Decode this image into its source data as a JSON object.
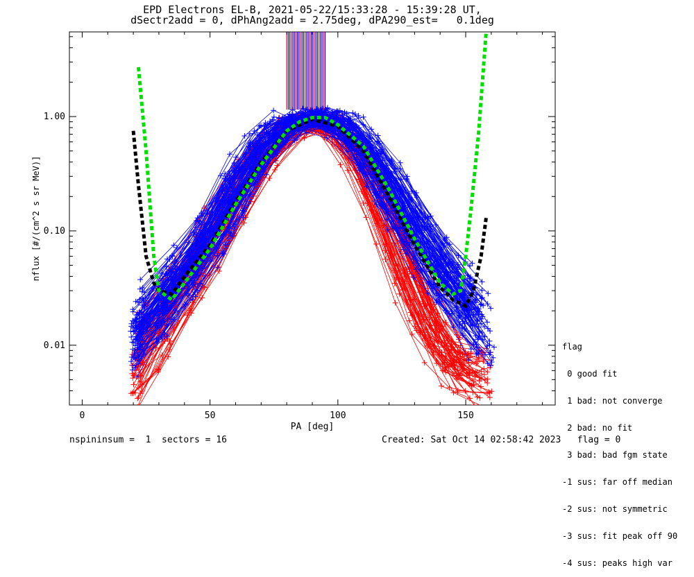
{
  "chart_data": {
    "type": "line",
    "title": "EPD Electrons EL-B, 2021-05-22/15:33:28 - 15:39:28 UT,",
    "subtitle": "dSectr2add = 0, dPhAng2add = 2.75deg, dPA290_est=   0.1deg",
    "xlabel": "PA [deg]",
    "ylabel": "nflux [#/(cm^2 s sr MeV)]",
    "xlim": [
      -5,
      185
    ],
    "ylim": [
      0.003,
      5.5
    ],
    "yscale": "log",
    "x_ticks": [
      "0",
      "50",
      "100",
      "150"
    ],
    "x_tick_values": [
      0,
      50,
      100,
      150
    ],
    "y_ticks": [
      "0.01",
      "0.10",
      "1.00"
    ],
    "y_tick_values": [
      0.01,
      0.1,
      1.0
    ],
    "series": [
      {
        "name": "",
        "color": "#ff0000",
        "kind": "spin-sector traces (red)",
        "x": [
          20,
          30,
          40,
          50,
          60,
          70,
          80,
          90,
          100,
          110,
          120,
          130,
          140,
          150,
          160
        ],
        "y": [
          0.006,
          0.018,
          0.035,
          0.08,
          0.2,
          0.45,
          0.8,
          0.95,
          0.85,
          0.4,
          0.12,
          0.03,
          0.01,
          0.006,
          0.006
        ]
      },
      {
        "name": "",
        "color": "#0000ff",
        "kind": "spin-sector traces (blue)",
        "x": [
          20,
          30,
          40,
          50,
          60,
          70,
          80,
          90,
          100,
          110,
          120,
          130,
          140,
          150,
          160
        ],
        "y": [
          0.012,
          0.025,
          0.045,
          0.1,
          0.25,
          0.55,
          0.9,
          1.0,
          0.9,
          0.55,
          0.25,
          0.1,
          0.045,
          0.025,
          0.012
        ]
      },
      {
        "name": "",
        "color": "#00e000",
        "kind": "fit (green dashed)",
        "x": [
          22,
          25,
          28,
          30,
          35,
          40,
          50,
          60,
          70,
          80,
          85,
          90,
          95,
          100,
          110,
          120,
          130,
          140,
          145,
          148,
          150,
          152,
          155,
          158
        ],
        "y": [
          2.7,
          0.5,
          0.06,
          0.03,
          0.025,
          0.035,
          0.07,
          0.17,
          0.38,
          0.75,
          0.9,
          0.98,
          0.98,
          0.85,
          0.55,
          0.23,
          0.085,
          0.035,
          0.028,
          0.03,
          0.06,
          0.15,
          0.7,
          5.5
        ]
      },
      {
        "name": "",
        "color": "#000000",
        "kind": "fit (black dashed)",
        "x": [
          20,
          22,
          25,
          28,
          30,
          35,
          40,
          50,
          60,
          70,
          80,
          90,
          100,
          110,
          120,
          130,
          140,
          145,
          150,
          153,
          156,
          158
        ],
        "y": [
          0.75,
          0.25,
          0.06,
          0.035,
          0.03,
          0.028,
          0.04,
          0.075,
          0.18,
          0.4,
          0.75,
          0.95,
          0.82,
          0.5,
          0.2,
          0.075,
          0.032,
          0.025,
          0.022,
          0.03,
          0.06,
          0.13
        ]
      }
    ],
    "grid": false,
    "legend": "right"
  },
  "legend_block": {
    "title": "flag",
    "items": [
      " 0 good fit",
      " 1 bad: not converge",
      " 2 bad: no fit",
      " 3 bad: bad fgm state",
      "-1 sus: far off median",
      "-2 sus: not symmetric",
      "-3 sus: fit peak off 90",
      "-4 sus: peaks high var"
    ]
  },
  "footer": {
    "left": "nspininsum =  1  sectors = 16",
    "right": "Created: Sat Oct 14 02:58:42 2023   flag = 0"
  }
}
